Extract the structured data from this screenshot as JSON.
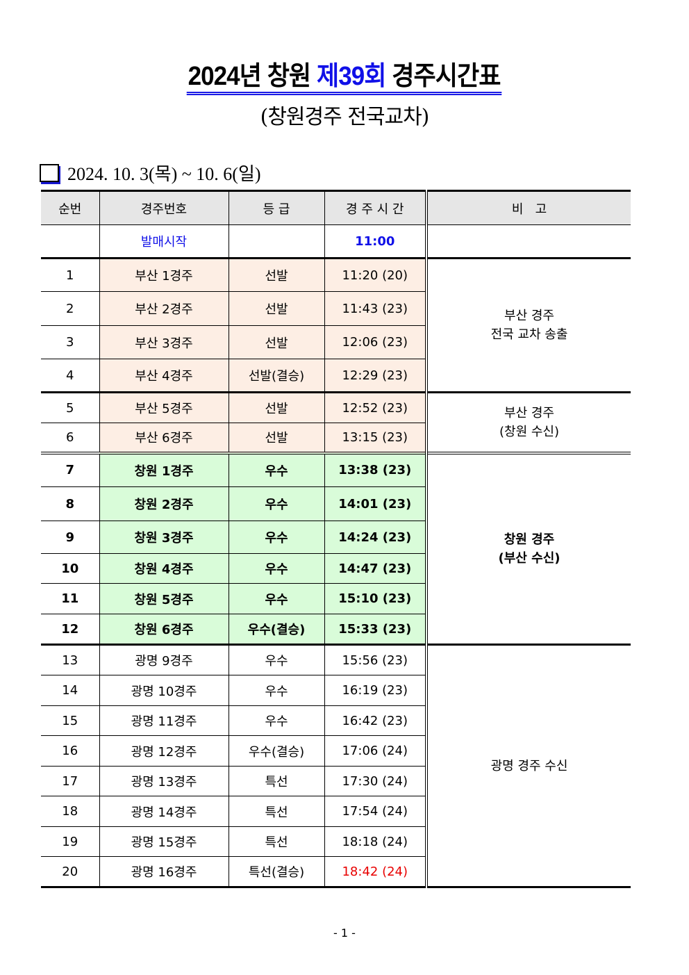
{
  "title": {
    "part1": "2024년 창원 ",
    "highlight": "제39회",
    "part2": " 경주시간표"
  },
  "subtitle": "(창원경주 전국교차)",
  "date_range": "2024. 10. 3(목) ~ 10. 6(일)",
  "headers": [
    "순번",
    "경주번호",
    "등 급",
    "경 주 시 간",
    "비   고"
  ],
  "sale_start": {
    "label": "발매시작",
    "time": "11:00"
  },
  "rows": [
    {
      "no": "1",
      "race": "부산 1경주",
      "grade": "선발",
      "time": "11:20 (20)"
    },
    {
      "no": "2",
      "race": "부산 2경주",
      "grade": "선발",
      "time": "11:43 (23)"
    },
    {
      "no": "3",
      "race": "부산 3경주",
      "grade": "선발",
      "time": "12:06 (23)"
    },
    {
      "no": "4",
      "race": "부산 4경주",
      "grade": "선발(결승)",
      "time": "12:29 (23)"
    },
    {
      "no": "5",
      "race": "부산 5경주",
      "grade": "선발",
      "time": "12:52 (23)"
    },
    {
      "no": "6",
      "race": "부산 6경주",
      "grade": "선발",
      "time": "13:15 (23)"
    },
    {
      "no": "7",
      "race": "창원 1경주",
      "grade": "우수",
      "time": "13:38 (23)"
    },
    {
      "no": "8",
      "race": "창원 2경주",
      "grade": "우수",
      "time": "14:01 (23)"
    },
    {
      "no": "9",
      "race": "창원 3경주",
      "grade": "우수",
      "time": "14:24 (23)"
    },
    {
      "no": "10",
      "race": "창원 4경주",
      "grade": "우수",
      "time": "14:47 (23)"
    },
    {
      "no": "11",
      "race": "창원 5경주",
      "grade": "우수",
      "time": "15:10 (23)"
    },
    {
      "no": "12",
      "race": "창원 6경주",
      "grade": "우수(결승)",
      "time": "15:33 (23)"
    },
    {
      "no": "13",
      "race": "광명 9경주",
      "grade": "우수",
      "time": "15:56 (23)"
    },
    {
      "no": "14",
      "race": "광명 10경주",
      "grade": "우수",
      "time": "16:19 (23)"
    },
    {
      "no": "15",
      "race": "광명 11경주",
      "grade": "우수",
      "time": "16:42 (23)"
    },
    {
      "no": "16",
      "race": "광명 12경주",
      "grade": "우수(결승)",
      "time": "17:06 (24)"
    },
    {
      "no": "17",
      "race": "광명 13경주",
      "grade": "특선",
      "time": "17:30 (24)"
    },
    {
      "no": "18",
      "race": "광명 14경주",
      "grade": "특선",
      "time": "17:54 (24)"
    },
    {
      "no": "19",
      "race": "광명 15경주",
      "grade": "특선",
      "time": "18:18 (24)"
    },
    {
      "no": "20",
      "race": "광명 16경주",
      "grade": "특선(결승)",
      "time": "18:42 (24)"
    }
  ],
  "remarks": {
    "g1": [
      "부산 경주",
      "전국 교차 송출"
    ],
    "g2": [
      "부산 경주",
      "(창원 수신)"
    ],
    "g3": [
      "창원 경주",
      "(부산 수신)"
    ],
    "g4": [
      "광명 경주 수신"
    ]
  },
  "page_number": "- 1 -",
  "colors": {
    "busan": "#fdeee4",
    "changwon": "#d9fcd9",
    "accent": "#1010e8",
    "last_race": "#e80000"
  }
}
